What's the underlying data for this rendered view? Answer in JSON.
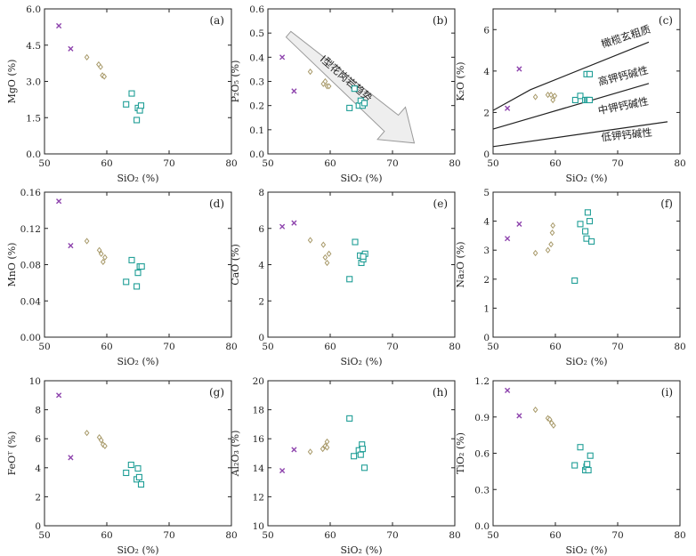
{
  "colors": {
    "group1": "#8e44ad",
    "group2": "#a89a6a",
    "group3": "#1f9e96",
    "axis": "#222222",
    "arrow_fill": "#eeeeee",
    "arrow_stroke": "#9a9a9a"
  },
  "chart_data": [
    {
      "id": "a",
      "type": "scatter",
      "panel_label": "(a)",
      "xlabel": "SiO₂ (%)",
      "ylabel": "MgO (%)",
      "xlim": [
        50,
        80
      ],
      "ylim": [
        0,
        6
      ],
      "xticks": [
        50,
        60,
        70,
        80
      ],
      "yticks": [
        0.0,
        1.5,
        3.0,
        4.5,
        6.0
      ],
      "xtick_labels": [
        "50",
        "60",
        "70",
        "80"
      ],
      "ytick_labels": [
        "0.0",
        "1.5",
        "3.0",
        "4.5",
        "6.0"
      ],
      "series": [
        {
          "marker": "x",
          "x": [
            52.3,
            54.2
          ],
          "y": [
            5.3,
            4.35
          ]
        },
        {
          "marker": "diamond",
          "x": [
            56.8,
            58.7,
            59.0,
            59.3,
            59.6
          ],
          "y": [
            4.0,
            3.7,
            3.6,
            3.25,
            3.2
          ]
        },
        {
          "marker": "square",
          "x": [
            63.1,
            64.0,
            64.8,
            65.0,
            65.3,
            65.5
          ],
          "y": [
            2.05,
            2.5,
            1.4,
            1.9,
            1.8,
            2.0
          ]
        }
      ]
    },
    {
      "id": "b",
      "type": "scatter",
      "panel_label": "(b)",
      "xlabel": "SiO₂ (%)",
      "ylabel": "P₂O₅ (%)",
      "xlim": [
        50,
        80
      ],
      "ylim": [
        0,
        0.6
      ],
      "xticks": [
        50,
        60,
        70,
        80
      ],
      "yticks": [
        0.0,
        0.1,
        0.2,
        0.3,
        0.4,
        0.5,
        0.6
      ],
      "xtick_labels": [
        "50",
        "60",
        "70",
        "80"
      ],
      "ytick_labels": [
        "0.0",
        "0.1",
        "0.2",
        "0.3",
        "0.4",
        "0.5",
        "0.6"
      ],
      "series": [
        {
          "marker": "x",
          "x": [
            52.3,
            54.2
          ],
          "y": [
            0.4,
            0.26
          ]
        },
        {
          "marker": "diamond",
          "x": [
            56.8,
            58.9,
            59.2,
            59.5,
            59.8
          ],
          "y": [
            0.34,
            0.29,
            0.3,
            0.28,
            0.28
          ]
        },
        {
          "marker": "square",
          "x": [
            63.1,
            63.9,
            64.6,
            64.9,
            65.2,
            65.5
          ],
          "y": [
            0.19,
            0.27,
            0.2,
            0.22,
            0.2,
            0.21
          ]
        }
      ],
      "annotation": {
        "text": "I型花岗岩趋势",
        "type": "arrow"
      }
    },
    {
      "id": "c",
      "type": "scatter",
      "panel_label": "(c)",
      "xlabel": "SiO₂ (%)",
      "ylabel": "K₂O (%)",
      "xlim": [
        50,
        80
      ],
      "ylim": [
        0,
        7
      ],
      "xticks": [
        50,
        60,
        70,
        80
      ],
      "yticks": [
        0,
        2,
        4,
        6
      ],
      "xtick_labels": [
        "50",
        "60",
        "70",
        "80"
      ],
      "ytick_labels": [
        "0",
        "2",
        "4",
        "6"
      ],
      "series": [
        {
          "marker": "x",
          "x": [
            52.3,
            54.2
          ],
          "y": [
            2.2,
            4.1
          ]
        },
        {
          "marker": "diamond",
          "x": [
            56.8,
            58.8,
            59.3,
            59.6,
            59.9
          ],
          "y": [
            2.75,
            2.85,
            2.85,
            2.6,
            2.8
          ]
        },
        {
          "marker": "square",
          "x": [
            63.2,
            64.0,
            64.8,
            65.1,
            65.3,
            65.5,
            65.0,
            65.5
          ],
          "y": [
            2.6,
            2.8,
            2.6,
            2.6,
            2.6,
            2.6,
            3.85,
            3.85
          ]
        }
      ],
      "boundary_lines": [
        {
          "x": [
            50,
            56,
            75
          ],
          "y": [
            2.1,
            3.1,
            5.4
          ]
        },
        {
          "x": [
            50,
            75
          ],
          "y": [
            1.2,
            3.4
          ]
        },
        {
          "x": [
            50,
            78
          ],
          "y": [
            0.35,
            1.55
          ]
        }
      ],
      "region_labels": [
        "橄榄玄粗质",
        "高钾钙碱性",
        "中钾钙碱性",
        "低钾钙碱性"
      ]
    },
    {
      "id": "d",
      "type": "scatter",
      "panel_label": "(d)",
      "xlabel": "SiO₂ (%)",
      "ylabel": "MnO (%)",
      "xlim": [
        50,
        80
      ],
      "ylim": [
        0,
        0.16
      ],
      "xticks": [
        50,
        60,
        70,
        80
      ],
      "yticks": [
        0.0,
        0.04,
        0.08,
        0.12,
        0.16
      ],
      "xtick_labels": [
        "50",
        "60",
        "70",
        "80"
      ],
      "ytick_labels": [
        "0.00",
        "0.04",
        "0.08",
        "0.12",
        "0.16"
      ],
      "series": [
        {
          "marker": "x",
          "x": [
            52.3,
            54.2
          ],
          "y": [
            0.15,
            0.101
          ]
        },
        {
          "marker": "diamond",
          "x": [
            56.8,
            58.8,
            59.1,
            59.4,
            59.7
          ],
          "y": [
            0.106,
            0.096,
            0.092,
            0.083,
            0.088
          ]
        },
        {
          "marker": "square",
          "x": [
            63.1,
            64.0,
            64.8,
            65.0,
            65.3,
            65.6
          ],
          "y": [
            0.061,
            0.085,
            0.056,
            0.071,
            0.078,
            0.078
          ]
        }
      ]
    },
    {
      "id": "e",
      "type": "scatter",
      "panel_label": "(e)",
      "xlabel": "SiO₂ (%)",
      "ylabel": "CaO (%)",
      "xlim": [
        50,
        80
      ],
      "ylim": [
        0,
        8
      ],
      "xticks": [
        50,
        60,
        70,
        80
      ],
      "yticks": [
        0,
        2,
        4,
        6,
        8
      ],
      "xtick_labels": [
        "50",
        "60",
        "70",
        "80"
      ],
      "ytick_labels": [
        "0",
        "2",
        "4",
        "6",
        "8"
      ],
      "series": [
        {
          "marker": "x",
          "x": [
            52.3,
            54.2
          ],
          "y": [
            6.1,
            6.3
          ]
        },
        {
          "marker": "diamond",
          "x": [
            56.8,
            58.9,
            59.2,
            59.5,
            59.8
          ],
          "y": [
            5.35,
            5.1,
            4.4,
            4.1,
            4.6
          ]
        },
        {
          "marker": "square",
          "x": [
            63.1,
            64.0,
            64.8,
            65.0,
            65.3,
            65.6,
            65.3
          ],
          "y": [
            3.2,
            5.25,
            4.5,
            4.1,
            4.3,
            4.6,
            4.45
          ]
        }
      ]
    },
    {
      "id": "f",
      "type": "scatter",
      "panel_label": "(f)",
      "xlabel": "SiO₂ (%)",
      "ylabel": "Na₂O (%)",
      "xlim": [
        50,
        80
      ],
      "ylim": [
        0,
        5
      ],
      "xticks": [
        50,
        60,
        70,
        80
      ],
      "yticks": [
        0,
        1,
        2,
        3,
        4,
        5
      ],
      "xtick_labels": [
        "50",
        "60",
        "70",
        "80"
      ],
      "ytick_labels": [
        "0",
        "1",
        "2",
        "3",
        "4",
        "5"
      ],
      "series": [
        {
          "marker": "x",
          "x": [
            52.3,
            54.2
          ],
          "y": [
            3.4,
            3.9
          ]
        },
        {
          "marker": "diamond",
          "x": [
            56.8,
            58.8,
            59.3,
            59.5,
            59.6
          ],
          "y": [
            2.9,
            3.0,
            3.2,
            3.6,
            3.85
          ]
        },
        {
          "marker": "square",
          "x": [
            63.1,
            64.0,
            64.8,
            65.0,
            65.2,
            65.5,
            65.8
          ],
          "y": [
            1.95,
            3.9,
            3.65,
            3.4,
            4.3,
            4.0,
            3.3
          ]
        }
      ]
    },
    {
      "id": "g",
      "type": "scatter",
      "panel_label": "(g)",
      "xlabel": "SiO₂ (%)",
      "ylabel": "FeOᵀ (%)",
      "xlim": [
        50,
        80
      ],
      "ylim": [
        0,
        10
      ],
      "xticks": [
        50,
        60,
        70,
        80
      ],
      "yticks": [
        0,
        2,
        4,
        6,
        8,
        10
      ],
      "xtick_labels": [
        "50",
        "60",
        "70",
        "80"
      ],
      "ytick_labels": [
        "0",
        "2",
        "4",
        "6",
        "8",
        "10"
      ],
      "series": [
        {
          "marker": "x",
          "x": [
            52.3,
            54.2
          ],
          "y": [
            9.0,
            4.7
          ]
        },
        {
          "marker": "diamond",
          "x": [
            56.8,
            58.8,
            59.1,
            59.4,
            59.7
          ],
          "y": [
            6.4,
            6.1,
            5.9,
            5.6,
            5.5
          ]
        },
        {
          "marker": "square",
          "x": [
            63.1,
            63.9,
            64.8,
            65.0,
            65.2,
            65.5
          ],
          "y": [
            3.65,
            4.2,
            3.2,
            3.95,
            3.35,
            2.85
          ]
        }
      ]
    },
    {
      "id": "h",
      "type": "scatter",
      "panel_label": "(h)",
      "xlabel": "SiO₂ (%)",
      "ylabel": "Al₂O₃ (%)",
      "xlim": [
        50,
        80
      ],
      "ylim": [
        10,
        20
      ],
      "xticks": [
        50,
        60,
        70,
        80
      ],
      "yticks": [
        10,
        12,
        14,
        16,
        18,
        20
      ],
      "xtick_labels": [
        "50",
        "60",
        "70",
        "80"
      ],
      "ytick_labels": [
        "10",
        "12",
        "14",
        "16",
        "18",
        "20"
      ],
      "series": [
        {
          "marker": "x",
          "x": [
            52.3,
            54.2
          ],
          "y": [
            13.8,
            15.25
          ]
        },
        {
          "marker": "diamond",
          "x": [
            56.8,
            58.8,
            59.2,
            59.5,
            59.5
          ],
          "y": [
            15.1,
            15.3,
            15.5,
            15.8,
            15.4
          ]
        },
        {
          "marker": "square",
          "x": [
            63.1,
            63.8,
            64.6,
            64.9,
            65.1,
            65.5,
            65.2
          ],
          "y": [
            17.4,
            14.8,
            15.2,
            14.9,
            15.6,
            14.0,
            15.3
          ]
        }
      ]
    },
    {
      "id": "i",
      "type": "scatter",
      "panel_label": "(i)",
      "xlabel": "SiO₂ (%)",
      "ylabel": "TiO₂ (%)",
      "xlim": [
        50,
        80
      ],
      "ylim": [
        0,
        1.2
      ],
      "xticks": [
        50,
        60,
        70,
        80
      ],
      "yticks": [
        0.0,
        0.3,
        0.6,
        0.9,
        1.2
      ],
      "xtick_labels": [
        "50",
        "60",
        "70",
        "80"
      ],
      "ytick_labels": [
        "0.0",
        "0.3",
        "0.6",
        "0.9",
        "1.2"
      ],
      "series": [
        {
          "marker": "x",
          "x": [
            52.3,
            54.2
          ],
          "y": [
            1.12,
            0.91
          ]
        },
        {
          "marker": "diamond",
          "x": [
            56.8,
            58.8,
            59.1,
            59.4,
            59.7
          ],
          "y": [
            0.96,
            0.89,
            0.88,
            0.85,
            0.83
          ]
        },
        {
          "marker": "square",
          "x": [
            63.1,
            64.0,
            64.8,
            65.0,
            65.1,
            65.3,
            65.6
          ],
          "y": [
            0.5,
            0.65,
            0.46,
            0.49,
            0.51,
            0.46,
            0.58
          ]
        }
      ]
    }
  ]
}
